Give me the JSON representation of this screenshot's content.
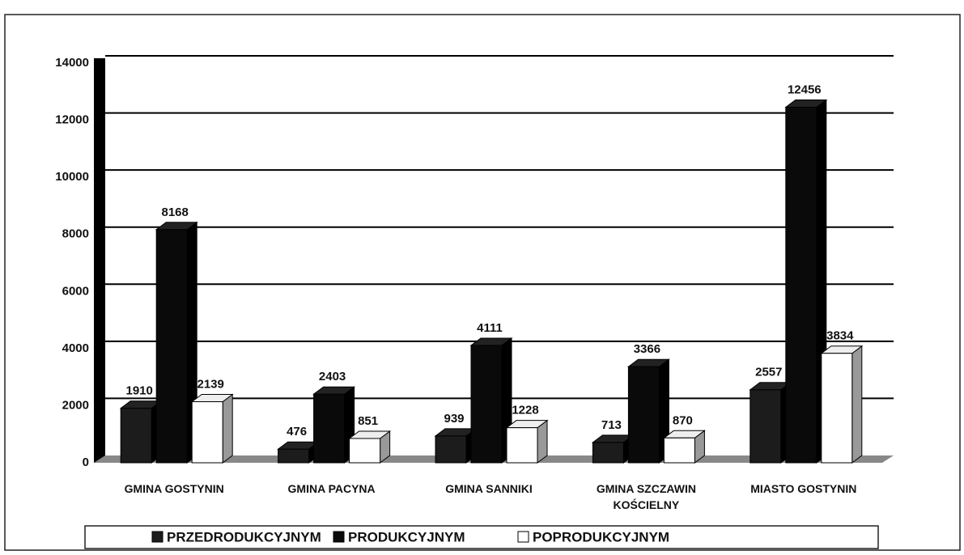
{
  "chart_data": {
    "type": "bar",
    "categories": [
      "GMINA GOSTYNIN",
      "GMINA PACYNA",
      "GMINA SANNIKI",
      "GMINA SZCZAWIN KOŚCIELNY",
      "MIASTO GOSTYNIN"
    ],
    "series": [
      {
        "name": "PRZEDRODUKCYJNYM",
        "color": "#1c1c1c",
        "values": [
          1910,
          476,
          939,
          713,
          2557
        ]
      },
      {
        "name": "PRODUKCYJNYM",
        "color": "#0a0a0a",
        "values": [
          8168,
          2403,
          4111,
          3366,
          12456
        ]
      },
      {
        "name": "POPRODUKCYJNYM",
        "color": "#ffffff",
        "values": [
          2139,
          851,
          1228,
          870,
          3834
        ]
      }
    ],
    "ylim": [
      0,
      14000
    ],
    "yticks": [
      0,
      2000,
      4000,
      6000,
      8000,
      10000,
      12000,
      14000
    ],
    "grid": true,
    "legend": "bottom"
  }
}
